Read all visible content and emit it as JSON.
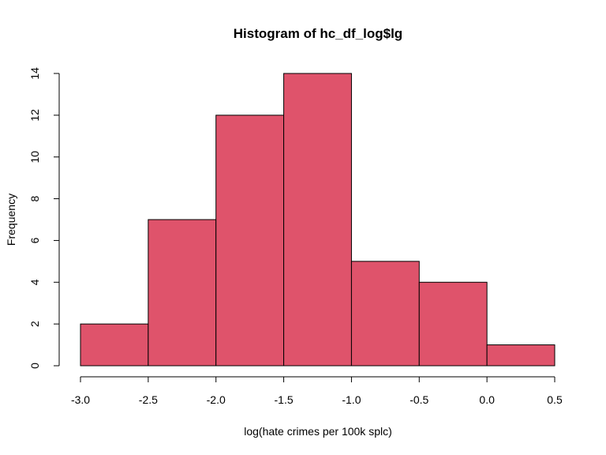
{
  "chart_data": {
    "type": "bar",
    "title": "Histogram of hc_df_log$lg",
    "xlabel": "log(hate crimes per 100k splc)",
    "ylabel": "Frequency",
    "bins": [
      {
        "x0": -3.0,
        "x1": -2.5,
        "count": 2
      },
      {
        "x0": -2.5,
        "x1": -2.0,
        "count": 7
      },
      {
        "x0": -2.0,
        "x1": -1.5,
        "count": 12
      },
      {
        "x0": -1.5,
        "x1": -1.0,
        "count": 14
      },
      {
        "x0": -1.0,
        "x1": -0.5,
        "count": 5
      },
      {
        "x0": -0.5,
        "x1": 0.0,
        "count": 4
      },
      {
        "x0": 0.0,
        "x1": 0.5,
        "count": 1
      }
    ],
    "xlim": [
      -3.0,
      0.5
    ],
    "ylim": [
      0,
      14
    ],
    "x_ticks": [
      "-3.0",
      "-2.5",
      "-2.0",
      "-1.5",
      "-1.0",
      "-0.5",
      "0.0",
      "0.5"
    ],
    "x_tick_values": [
      -3.0,
      -2.5,
      -2.0,
      -1.5,
      -1.0,
      -0.5,
      0.0,
      0.5
    ],
    "y_ticks": [
      "0",
      "2",
      "4",
      "6",
      "8",
      "10",
      "12",
      "14"
    ],
    "y_tick_values": [
      0,
      2,
      4,
      6,
      8,
      10,
      12,
      14
    ],
    "bar_color": "#DF536B",
    "grid": false
  }
}
